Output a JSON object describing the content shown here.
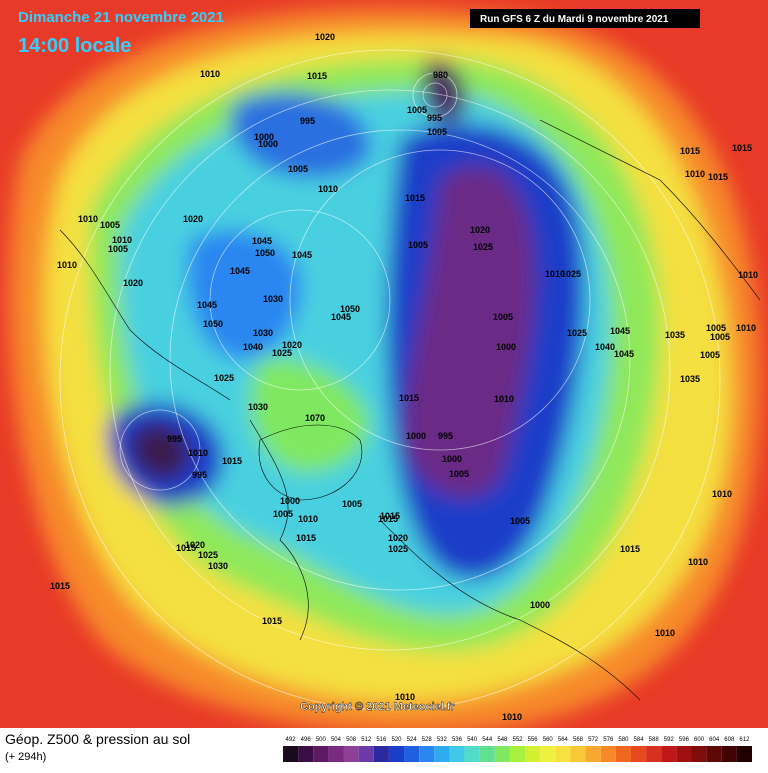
{
  "header": {
    "date": "Dimanche 21 novembre 2021",
    "time": "14:00 locale",
    "run": "Run GFS 6 Z du Mardi 9 novembre 2021"
  },
  "copyright": "Copyright © 2021 Meteociel.fr",
  "footer": {
    "title": "Géop. Z500 & pression au sol",
    "subtitle": "(+ 294h)"
  },
  "legend": {
    "values": [
      492,
      496,
      500,
      504,
      508,
      512,
      516,
      520,
      524,
      528,
      532,
      536,
      540,
      544,
      548,
      552,
      556,
      560,
      564,
      568,
      572,
      576,
      580,
      584,
      588,
      592,
      596,
      600,
      604,
      608,
      612
    ],
    "colors": [
      "#1a0a1e",
      "#3a0d44",
      "#5b1a63",
      "#7a2a80",
      "#8e3f96",
      "#6a3aa8",
      "#2a2a9e",
      "#1a3ec8",
      "#2060e0",
      "#2a86f0",
      "#30aaf0",
      "#40c8e8",
      "#50dcc8",
      "#60e090",
      "#80e860",
      "#a8f040",
      "#d0f030",
      "#f0f040",
      "#f8e040",
      "#f8c838",
      "#f8a830",
      "#f88828",
      "#f06820",
      "#e84a20",
      "#d83020",
      "#c01818",
      "#a01010",
      "#800c0c",
      "#600808",
      "#400404",
      "#200000"
    ]
  },
  "isobars": [
    "1020",
    "1015",
    "1010",
    "995",
    "1000",
    "1000",
    "1005",
    "1010",
    "1010",
    "1005",
    "1020",
    "1010",
    "1005",
    "1010",
    "1020",
    "1045",
    "1050",
    "1045",
    "1045",
    "1030",
    "1045",
    "1050",
    "1030",
    "1040",
    "1025",
    "1020",
    "1050",
    "1045",
    "1025",
    "1030",
    "995",
    "1010",
    "995",
    "1015",
    "1070",
    "1000",
    "1005",
    "1010",
    "1015",
    "1015",
    "1020",
    "1025",
    "1030",
    "1020",
    "1025",
    "1015",
    "1005",
    "1015",
    "1005",
    "1020",
    "1025",
    "1010",
    "1025",
    "1005",
    "1000",
    "1010",
    "1015",
    "1000",
    "995",
    "1000",
    "1005",
    "1025",
    "1045",
    "1040",
    "1045",
    "1035",
    "1005",
    "1010",
    "1035",
    "1015",
    "1010",
    "1015",
    "1015",
    "1010",
    "1005",
    "1005",
    "1005",
    "1000",
    "1010",
    "1010",
    "1010",
    "1015",
    "1015",
    "1015",
    "1010",
    "1010",
    "980",
    "995",
    "1005",
    "1015",
    "1005"
  ]
}
